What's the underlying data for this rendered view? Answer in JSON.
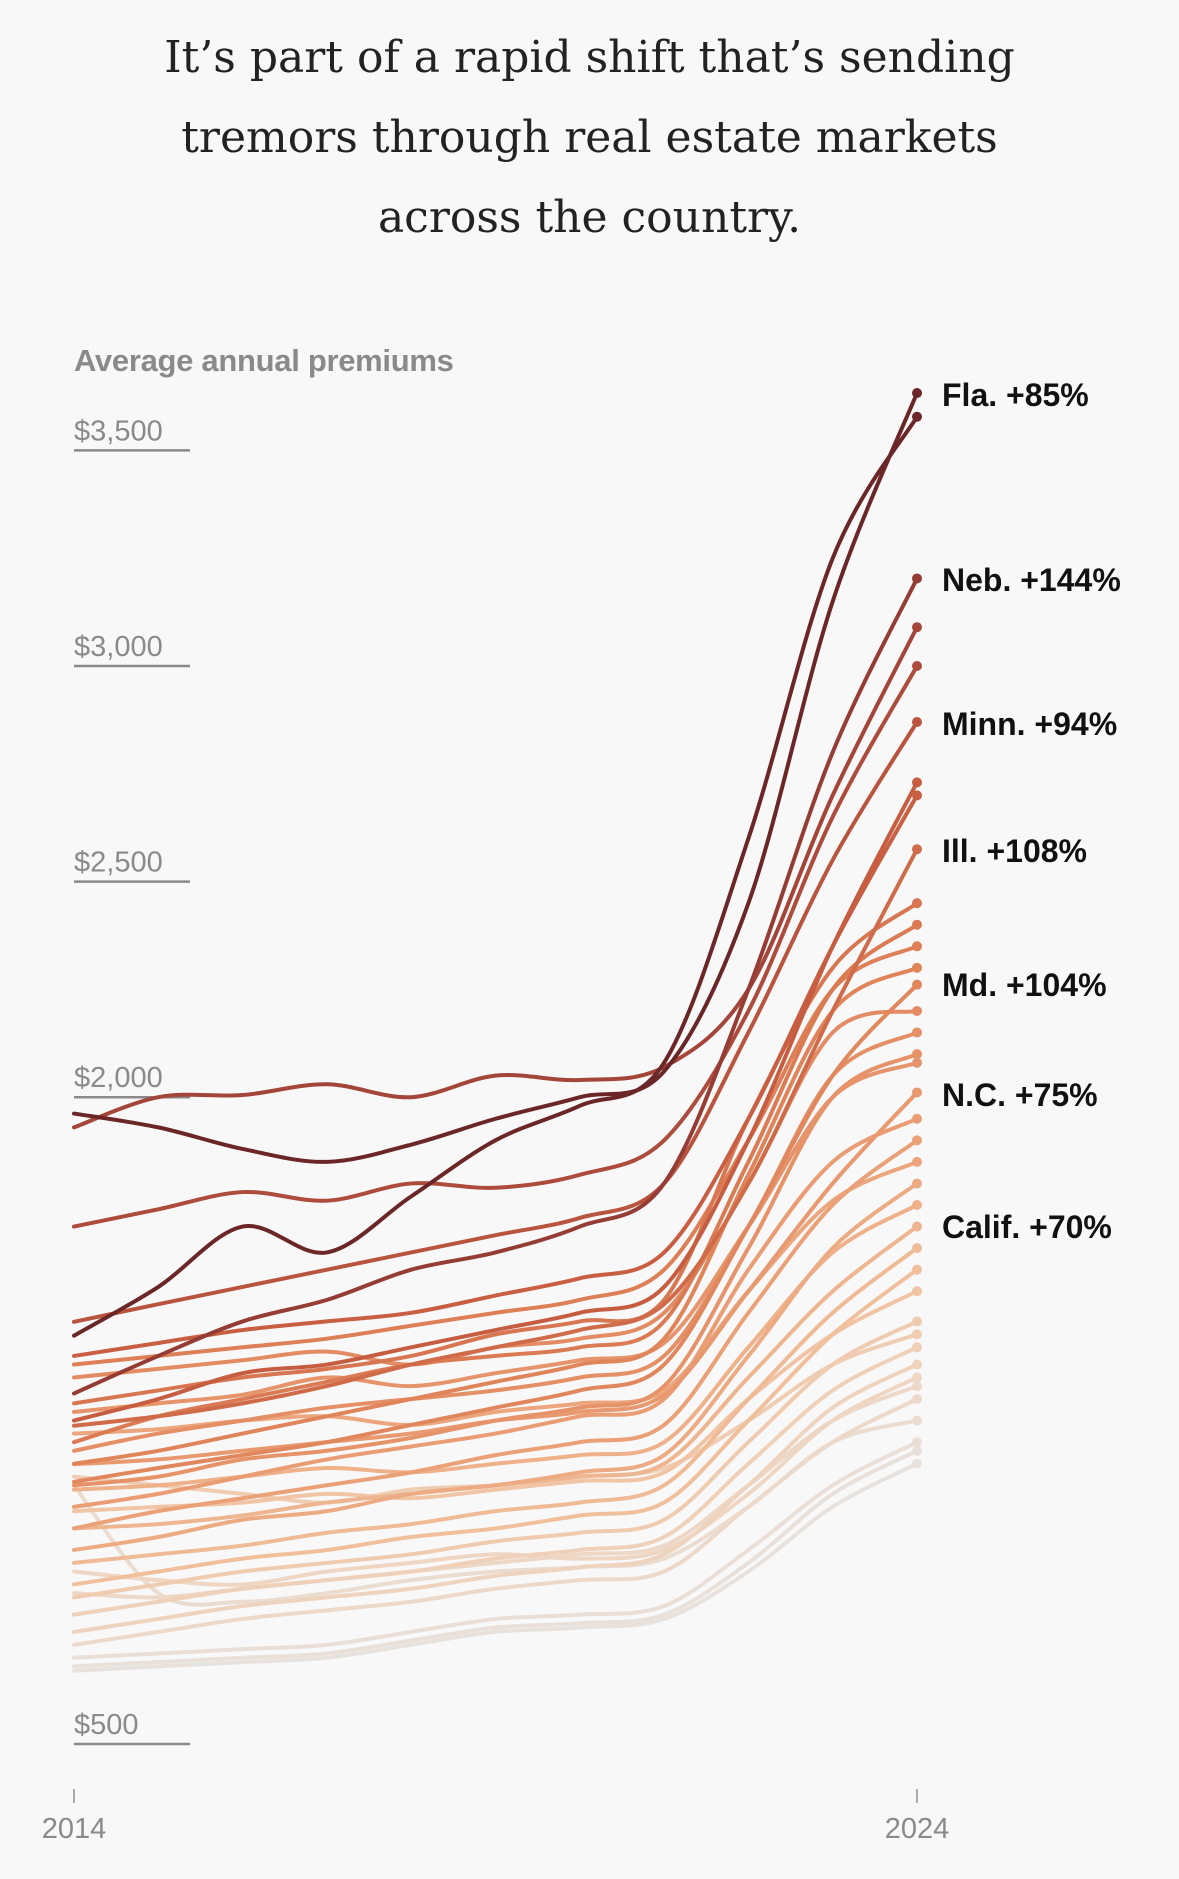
{
  "title_lines": [
    "It’s part of a rapid shift that’s sending",
    "tremors through real estate markets",
    "across the country."
  ],
  "chart_data": {
    "type": "line",
    "ylabel": "Average annual premiums",
    "x": [
      2014,
      2015,
      2016,
      2017,
      2018,
      2019,
      2020,
      2021,
      2022,
      2023,
      2024
    ],
    "x_tick_labels": [
      "2014",
      "2024"
    ],
    "y_ticks": [
      {
        "value": 3500,
        "label": "$3,500"
      },
      {
        "value": 3000,
        "label": "$3,000"
      },
      {
        "value": 2500,
        "label": "$2,500"
      },
      {
        "value": 2000,
        "label": "$2,000"
      },
      {
        "value": 500,
        "label": "$500"
      }
    ],
    "ylim": [
      500,
      3650
    ],
    "grid": false,
    "color_scale": [
      {
        "value": 3500,
        "color": "#6b2728"
      },
      {
        "value": 3100,
        "color": "#a3443a"
      },
      {
        "value": 2700,
        "color": "#c95f42"
      },
      {
        "value": 2300,
        "color": "#e0845a"
      },
      {
        "value": 1900,
        "color": "#eba178"
      },
      {
        "value": 1600,
        "color": "#f0c09c"
      },
      {
        "value": 1350,
        "color": "#eed6c3"
      },
      {
        "value": 1150,
        "color": "#e7e2dd"
      }
    ],
    "series": [
      {
        "name": "Fla.",
        "change": "+85%",
        "values": [
          1962,
          1930,
          1880,
          1850,
          1890,
          1950,
          2000,
          2060,
          2450,
          3150,
          3633
        ]
      },
      {
        "values": [
          1447,
          1560,
          1700,
          1640,
          1770,
          1900,
          1980,
          2080,
          2600,
          3250,
          3578
        ]
      },
      {
        "name": "Neb.",
        "change": "+144%",
        "values": [
          1313,
          1400,
          1480,
          1530,
          1600,
          1640,
          1700,
          1800,
          2250,
          2800,
          3203
        ]
      },
      {
        "values": [
          1930,
          2000,
          2005,
          2030,
          2000,
          2050,
          2040,
          2070,
          2250,
          2700,
          3090
        ]
      },
      {
        "values": [
          1700,
          1740,
          1780,
          1760,
          1800,
          1790,
          1820,
          1900,
          2200,
          2650,
          3000
        ]
      },
      {
        "name": "Minn.",
        "change": "+94%",
        "values": [
          1479,
          1520,
          1560,
          1600,
          1640,
          1680,
          1720,
          1800,
          2150,
          2550,
          2870
        ]
      },
      {
        "values": [
          1250,
          1300,
          1360,
          1380,
          1420,
          1460,
          1500,
          1560,
          1900,
          2350,
          2730
        ]
      },
      {
        "values": [
          1400,
          1430,
          1460,
          1480,
          1500,
          1540,
          1580,
          1640,
          1950,
          2350,
          2700
        ]
      },
      {
        "name": "Ill.",
        "change": "+108%",
        "values": [
          1238,
          1260,
          1290,
          1330,
          1380,
          1420,
          1460,
          1520,
          1800,
          2200,
          2575
        ]
      },
      {
        "values": [
          1290,
          1320,
          1350,
          1370,
          1400,
          1450,
          1480,
          1530,
          1950,
          2300,
          2450
        ]
      },
      {
        "values": [
          1200,
          1260,
          1300,
          1340,
          1380,
          1400,
          1420,
          1480,
          1850,
          2250,
          2400
        ]
      },
      {
        "values": [
          1380,
          1400,
          1420,
          1440,
          1470,
          1500,
          1530,
          1600,
          1900,
          2250,
          2350
        ]
      },
      {
        "values": [
          1150,
          1180,
          1220,
          1260,
          1300,
          1340,
          1380,
          1440,
          1820,
          2200,
          2300
        ]
      },
      {
        "name": "Md.",
        "change": "+104%",
        "values": [
          1108,
          1140,
          1170,
          1200,
          1240,
          1280,
          1320,
          1380,
          1700,
          2050,
          2261
        ]
      },
      {
        "values": [
          1350,
          1370,
          1390,
          1410,
          1380,
          1420,
          1440,
          1500,
          1800,
          2150,
          2200
        ]
      },
      {
        "values": [
          1180,
          1220,
          1250,
          1280,
          1300,
          1320,
          1350,
          1400,
          1700,
          2050,
          2150
        ]
      },
      {
        "values": [
          1100,
          1120,
          1160,
          1180,
          1210,
          1250,
          1280,
          1330,
          1650,
          2000,
          2100
        ]
      },
      {
        "values": [
          1270,
          1290,
          1310,
          1350,
          1330,
          1360,
          1390,
          1430,
          1700,
          2000,
          2080
        ]
      },
      {
        "name": "N.C.",
        "change": "+75%",
        "values": [
          1149,
          1160,
          1180,
          1200,
          1220,
          1250,
          1270,
          1310,
          1550,
          1800,
          2011
        ]
      },
      {
        "values": [
          1050,
          1080,
          1120,
          1160,
          1190,
          1220,
          1260,
          1300,
          1600,
          1850,
          1950
        ]
      },
      {
        "values": [
          1000,
          1040,
          1070,
          1100,
          1130,
          1170,
          1200,
          1240,
          1500,
          1750,
          1900
        ]
      },
      {
        "values": [
          1220,
          1230,
          1250,
          1260,
          1240,
          1270,
          1290,
          1320,
          1550,
          1760,
          1850
        ]
      },
      {
        "values": [
          950,
          980,
          1020,
          1040,
          1080,
          1100,
          1130,
          1170,
          1400,
          1650,
          1800
        ]
      },
      {
        "values": [
          1090,
          1100,
          1120,
          1140,
          1130,
          1150,
          1170,
          1200,
          1420,
          1640,
          1750
        ]
      },
      {
        "name": "Calif.",
        "change": "+70%",
        "values": [
          1000,
          1010,
          1030,
          1060,
          1080,
          1100,
          1120,
          1150,
          1350,
          1550,
          1700
        ]
      },
      {
        "values": [
          920,
          940,
          960,
          990,
          1010,
          1040,
          1060,
          1100,
          1300,
          1500,
          1650
        ]
      },
      {
        "values": [
          870,
          900,
          930,
          950,
          980,
          1000,
          1030,
          1060,
          1250,
          1450,
          1600
        ]
      },
      {
        "values": [
          1040,
          1050,
          1060,
          1080,
          1070,
          1090,
          1110,
          1130,
          1300,
          1450,
          1550
        ]
      },
      {
        "values": [
          840,
          870,
          900,
          920,
          940,
          970,
          990,
          1020,
          1200,
          1380,
          1480
        ]
      },
      {
        "values": [
          1120,
          1100,
          1080,
          1060,
          1090,
          1100,
          1120,
          1140,
          1250,
          1380,
          1450
        ]
      },
      {
        "values": [
          800,
          830,
          860,
          880,
          900,
          930,
          950,
          980,
          1150,
          1320,
          1420
        ]
      },
      {
        "values": [
          760,
          790,
          820,
          840,
          860,
          890,
          910,
          940,
          1100,
          1280,
          1380
        ]
      },
      {
        "values": [
          900,
          880,
          870,
          900,
          920,
          940,
          930,
          950,
          1080,
          1250,
          1350
        ]
      },
      {
        "values": [
          850,
          840,
          860,
          880,
          900,
          920,
          940,
          960,
          1100,
          1250,
          1330
        ]
      },
      {
        "values": [
          730,
          760,
          790,
          810,
          830,
          860,
          880,
          900,
          1050,
          1200,
          1300
        ]
      },
      {
        "values": [
          1100,
          850,
          830,
          850,
          880,
          900,
          910,
          930,
          1050,
          1200,
          1250
        ]
      },
      {
        "values": [
          700,
          710,
          720,
          730,
          760,
          790,
          800,
          820,
          950,
          1100,
          1200
        ]
      },
      {
        "values": [
          680,
          690,
          700,
          710,
          740,
          770,
          780,
          800,
          920,
          1080,
          1180
        ]
      },
      {
        "values": [
          670,
          680,
          690,
          700,
          730,
          760,
          770,
          790,
          900,
          1050,
          1150
        ]
      }
    ]
  }
}
